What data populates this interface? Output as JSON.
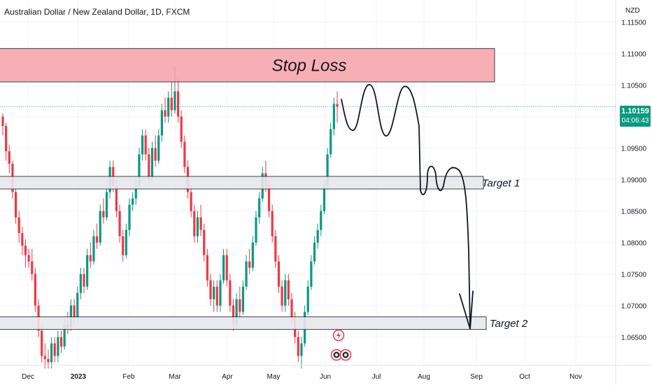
{
  "header": {
    "title": "Australian Dollar / New Zealand Dollar, 1D, FXCM",
    "currency": "NZD"
  },
  "price_badge": {
    "price": "1.10159",
    "countdown": "04:06:43"
  },
  "colors": {
    "up": "#089981",
    "down": "#f23645",
    "stop_zone_fill": "#f7a0a8",
    "target_zone_fill": "#e6e8ec",
    "grid": "#f0f3fa",
    "axis_text": "#131722"
  },
  "annotations": {
    "stop_label": "Stop Loss",
    "target1_label": "Target 1",
    "target2_label": "Target 2"
  },
  "event_icons": [
    "flash-icon",
    "earnings-icon",
    "earnings-icon"
  ],
  "chart_data": {
    "type": "candlestick",
    "title": "Australian Dollar / New Zealand Dollar, 1D, FXCM",
    "x_tick_labels": [
      "Dec",
      "2023",
      "Feb",
      "Mar",
      "Apr",
      "May",
      "Jun",
      "Jul",
      "Aug",
      "Sep",
      "Oct",
      "Nov"
    ],
    "y_tick_labels": [
      "1.11500",
      "1.11000",
      "1.10500",
      "1.10000",
      "1.09500",
      "1.09000",
      "1.08500",
      "1.08000",
      "1.07500",
      "1.07000",
      "1.06500"
    ],
    "ylim": [
      1.0605,
      1.1185
    ],
    "last_price": 1.10159,
    "grid": true,
    "zones": [
      {
        "label": "Stop Loss",
        "from": 1.1055,
        "to": 1.1108
      },
      {
        "label": "Target 1",
        "from": 1.0885,
        "to": 1.0905
      },
      {
        "label": "Target 2",
        "from": 1.0662,
        "to": 1.0682
      }
    ],
    "candles_ohlc": [
      [
        1.1,
        1.1005,
        1.097,
        1.0985
      ],
      [
        1.0985,
        1.099,
        1.093,
        1.0945
      ],
      [
        1.0945,
        1.0955,
        1.091,
        1.0925
      ],
      [
        1.0925,
        1.093,
        1.087,
        1.088
      ],
      [
        1.088,
        1.089,
        1.083,
        1.084
      ],
      [
        1.084,
        1.085,
        1.08,
        1.0815
      ],
      [
        1.0815,
        1.0825,
        1.078,
        1.0795
      ],
      [
        1.0795,
        1.0805,
        1.076,
        1.078
      ],
      [
        1.078,
        1.079,
        1.076,
        1.077
      ],
      [
        1.077,
        1.079,
        1.074,
        1.075
      ],
      [
        1.075,
        1.076,
        1.069,
        1.07
      ],
      [
        1.07,
        1.071,
        1.065,
        1.066
      ],
      [
        1.066,
        1.067,
        1.061,
        1.062
      ],
      [
        1.062,
        1.064,
        1.06,
        1.0615
      ],
      [
        1.0615,
        1.063,
        1.06,
        1.061
      ],
      [
        1.061,
        1.065,
        1.06,
        1.064
      ],
      [
        1.064,
        1.065,
        1.061,
        1.062
      ],
      [
        1.062,
        1.066,
        1.061,
        1.065
      ],
      [
        1.065,
        1.066,
        1.0625,
        1.0635
      ],
      [
        1.0635,
        1.068,
        1.063,
        1.067
      ],
      [
        1.067,
        1.069,
        1.0655,
        1.0665
      ],
      [
        1.0665,
        1.071,
        1.066,
        1.07
      ],
      [
        1.07,
        1.071,
        1.067,
        1.068
      ],
      [
        1.068,
        1.073,
        1.0675,
        1.072
      ],
      [
        1.072,
        1.076,
        1.071,
        1.075
      ],
      [
        1.075,
        1.076,
        1.072,
        1.073
      ],
      [
        1.073,
        1.079,
        1.0725,
        1.078
      ],
      [
        1.078,
        1.08,
        1.076,
        1.077
      ],
      [
        1.077,
        1.082,
        1.0765,
        1.081
      ],
      [
        1.081,
        1.083,
        1.079,
        1.08
      ],
      [
        1.08,
        1.086,
        1.0795,
        1.085
      ],
      [
        1.085,
        1.087,
        1.083,
        1.084
      ],
      [
        1.084,
        1.089,
        1.0835,
        1.088
      ],
      [
        1.088,
        1.093,
        1.087,
        1.092
      ],
      [
        1.092,
        1.093,
        1.088,
        1.089
      ],
      [
        1.089,
        1.09,
        1.084,
        1.085
      ],
      [
        1.085,
        1.086,
        1.08,
        1.081
      ],
      [
        1.081,
        1.082,
        1.077,
        1.078
      ],
      [
        1.078,
        1.083,
        1.0775,
        1.082
      ],
      [
        1.082,
        1.087,
        1.081,
        1.086
      ],
      [
        1.086,
        1.088,
        1.085,
        1.087
      ],
      [
        1.087,
        1.09,
        1.086,
        1.089
      ],
      [
        1.089,
        1.095,
        1.0885,
        1.094
      ],
      [
        1.094,
        1.098,
        1.093,
        1.097
      ],
      [
        1.097,
        1.098,
        1.093,
        1.094
      ],
      [
        1.094,
        1.095,
        1.089,
        1.09
      ],
      [
        1.09,
        1.096,
        1.0895,
        1.095
      ],
      [
        1.095,
        1.097,
        1.092,
        1.093
      ],
      [
        1.093,
        1.098,
        1.0925,
        1.097
      ],
      [
        1.097,
        1.102,
        1.096,
        1.101
      ],
      [
        1.101,
        1.103,
        1.099,
        1.1
      ],
      [
        1.1,
        1.104,
        1.099,
        1.103
      ],
      [
        1.103,
        1.1055,
        1.1,
        1.101
      ],
      [
        1.101,
        1.108,
        1.1005,
        1.104
      ],
      [
        1.104,
        1.106,
        1.099,
        1.1
      ],
      [
        1.1,
        1.101,
        1.095,
        1.096
      ],
      [
        1.096,
        1.097,
        1.091,
        1.092
      ],
      [
        1.092,
        1.093,
        1.087,
        1.088
      ],
      [
        1.088,
        1.089,
        1.084,
        1.085
      ],
      [
        1.085,
        1.086,
        1.08,
        1.081
      ],
      [
        1.081,
        1.085,
        1.08,
        1.084
      ],
      [
        1.084,
        1.086,
        1.081,
        1.082
      ],
      [
        1.082,
        1.083,
        1.077,
        1.078
      ],
      [
        1.078,
        1.079,
        1.073,
        1.074
      ],
      [
        1.074,
        1.075,
        1.07,
        1.071
      ],
      [
        1.071,
        1.074,
        1.069,
        1.073
      ],
      [
        1.073,
        1.074,
        1.069,
        1.07
      ],
      [
        1.07,
        1.075,
        1.069,
        1.074
      ],
      [
        1.074,
        1.079,
        1.0735,
        1.078
      ],
      [
        1.078,
        1.079,
        1.073,
        1.074
      ],
      [
        1.074,
        1.075,
        1.069,
        1.07
      ],
      [
        1.07,
        1.071,
        1.066,
        1.067
      ],
      [
        1.067,
        1.072,
        1.0665,
        1.071
      ],
      [
        1.071,
        1.073,
        1.068,
        1.069
      ],
      [
        1.069,
        1.074,
        1.0685,
        1.073
      ],
      [
        1.073,
        1.078,
        1.0725,
        1.077
      ],
      [
        1.077,
        1.079,
        1.075,
        1.076
      ],
      [
        1.076,
        1.081,
        1.0755,
        1.08
      ],
      [
        1.08,
        1.085,
        1.0795,
        1.084
      ],
      [
        1.084,
        1.088,
        1.083,
        1.087
      ],
      [
        1.087,
        1.092,
        1.0865,
        1.091
      ],
      [
        1.091,
        1.093,
        1.088,
        1.089
      ],
      [
        1.089,
        1.09,
        1.084,
        1.085
      ],
      [
        1.085,
        1.086,
        1.08,
        1.081
      ],
      [
        1.081,
        1.082,
        1.076,
        1.077
      ],
      [
        1.077,
        1.078,
        1.072,
        1.073
      ],
      [
        1.073,
        1.074,
        1.069,
        1.07
      ],
      [
        1.07,
        1.075,
        1.069,
        1.074
      ],
      [
        1.074,
        1.075,
        1.07,
        1.071
      ],
      [
        1.071,
        1.072,
        1.067,
        1.068
      ],
      [
        1.068,
        1.069,
        1.064,
        1.065
      ],
      [
        1.065,
        1.066,
        1.061,
        1.062
      ],
      [
        1.062,
        1.065,
        1.06,
        1.064
      ],
      [
        1.064,
        1.07,
        1.0635,
        1.069
      ],
      [
        1.069,
        1.074,
        1.0685,
        1.073
      ],
      [
        1.073,
        1.078,
        1.0725,
        1.077
      ],
      [
        1.077,
        1.081,
        1.0765,
        1.08
      ],
      [
        1.08,
        1.083,
        1.079,
        1.082
      ],
      [
        1.082,
        1.086,
        1.081,
        1.085
      ],
      [
        1.085,
        1.09,
        1.0845,
        1.089
      ],
      [
        1.089,
        1.095,
        1.0885,
        1.094
      ],
      [
        1.094,
        1.099,
        1.0935,
        1.098
      ],
      [
        1.098,
        1.103,
        1.097,
        1.102
      ],
      [
        1.102,
        1.104,
        1.099,
        1.1016
      ]
    ]
  }
}
